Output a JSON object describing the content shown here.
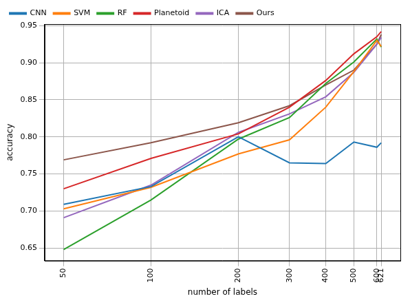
{
  "chart_data": {
    "type": "line",
    "x_label": "number of labels",
    "y_label": "accuracy",
    "log": "x",
    "grid": true,
    "legend": "upper left",
    "x": [
      50,
      100,
      200,
      300,
      400,
      500,
      600,
      621
    ],
    "xlim": [
      43,
      723
    ],
    "xticks": [
      50,
      100,
      200,
      300,
      400,
      500,
      600,
      621
    ],
    "ylim": [
      0.633,
      0.952
    ],
    "yticks": [
      0.65,
      {
        "value": 0.7,
        "label": "0.70"
      },
      0.75,
      {
        "value": 0.8,
        "label": "0.80"
      },
      0.85,
      {
        "value": 0.9,
        "label": "0.90"
      },
      0.95
    ],
    "series": [
      {
        "name": "CNN",
        "color": "#1f77b4",
        "values": [
          0.709,
          0.733,
          0.8,
          0.765,
          0.764,
          0.793,
          0.786,
          0.792
        ]
      },
      {
        "name": "SVM",
        "color": "#ff7f0e",
        "values": [
          0.703,
          0.732,
          0.777,
          0.796,
          0.84,
          0.888,
          0.93,
          0.922
        ]
      },
      {
        "name": "RF",
        "color": "#2ca02c",
        "values": [
          0.648,
          0.715,
          0.797,
          0.826,
          0.872,
          0.901,
          0.932,
          0.921
        ]
      },
      {
        "name": "Planetoid",
        "color": "#d62728",
        "values": [
          0.73,
          0.771,
          0.804,
          0.84,
          0.876,
          0.912,
          0.935,
          0.942
        ]
      },
      {
        "name": "ICA",
        "color": "#9467bd",
        "values": [
          0.691,
          0.735,
          0.806,
          0.831,
          0.854,
          0.887,
          0.925,
          0.934
        ]
      },
      {
        "name": "Ours",
        "color": "#8c564b",
        "values": [
          0.769,
          0.792,
          0.819,
          0.842,
          0.87,
          0.89,
          0.925,
          0.938
        ]
      }
    ]
  }
}
